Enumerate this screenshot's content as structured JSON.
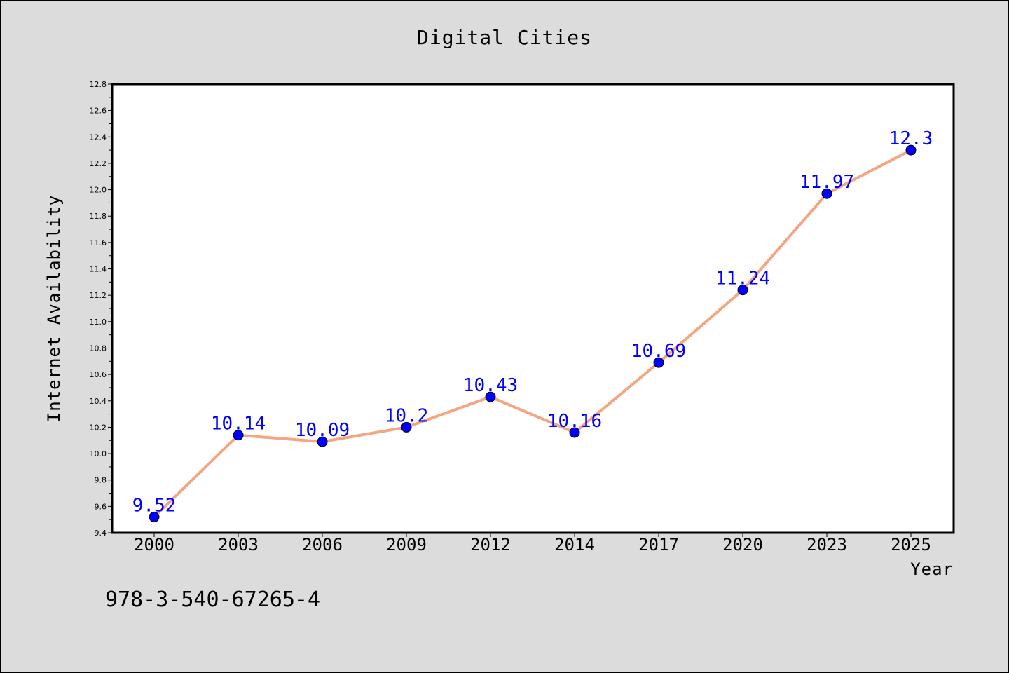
{
  "chart_data": {
    "type": "line",
    "title": "Digital Cities",
    "xlabel": "Year",
    "ylabel": "Internet Availability",
    "categories": [
      "2000",
      "2003",
      "2006",
      "2009",
      "2012",
      "2014",
      "2017",
      "2020",
      "2023",
      "2025"
    ],
    "series": [
      {
        "values": [
          9.52,
          10.14,
          10.09,
          10.2,
          10.43,
          10.16,
          10.69,
          11.24,
          11.97,
          12.3
        ],
        "data_labels": [
          "9.52",
          "10.14",
          "10.09",
          "10.2",
          "10.43",
          "10.16",
          "10.69",
          "11.24",
          "11.97",
          "12.3"
        ],
        "line_color": "#f4a582",
        "marker_color": "#0000ff"
      }
    ],
    "ylim": [
      9.4,
      12.8
    ],
    "yticks": [
      "9.4",
      "9.6",
      "9.8",
      "10.0",
      "10.2",
      "10.4",
      "10.6",
      "10.8",
      "11.0",
      "11.2",
      "11.4",
      "11.6",
      "11.8",
      "12.0",
      "12.2",
      "12.4",
      "12.6",
      "12.8"
    ],
    "grid": false,
    "legend": "none"
  },
  "footnote": "978-3-540-67265-4",
  "colors": {
    "background": "#dcdcdc",
    "plot_background": "#ffffff",
    "line": "#f4a582",
    "marker": "#0000ff",
    "label": "#0000ff"
  }
}
